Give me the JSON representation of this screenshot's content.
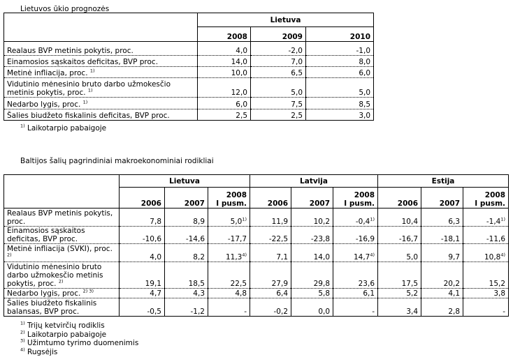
{
  "table1": {
    "title": "Lietuvos ūkio prognozės",
    "group": "Lietuva",
    "years": [
      "2008",
      "2009",
      "2010"
    ],
    "rows": [
      {
        "label": "Realaus BVP metinis pokytis, proc.",
        "sup": "",
        "values": [
          "4,0",
          "-2,0",
          "-1,0"
        ]
      },
      {
        "label": "Einamosios sąskaitos deficitas, BVP proc.",
        "sup": "",
        "values": [
          "14,0",
          "7,0",
          "8,0"
        ]
      },
      {
        "label": "Metinė infliacija, proc.",
        "sup": "1)",
        "values": [
          "10,0",
          "6,5",
          "6,0"
        ]
      },
      {
        "label": "Vidutinio mėnesinio bruto darbo užmokesčio metinis pokytis, proc.",
        "sup": "1)",
        "values": [
          "12,0",
          "5,0",
          "5,0"
        ]
      },
      {
        "label": "Nedarbo lygis, proc.",
        "sup": "1)",
        "values": [
          "6,0",
          "7,5",
          "8,5"
        ]
      },
      {
        "label": "Šalies biudžeto fiskalinis deficitas, BVP proc.",
        "sup": "",
        "values": [
          "2,5",
          "2,5",
          "3,0"
        ]
      }
    ],
    "footnote": {
      "sup": "1)",
      "text": "Laikotarpio pabaigoje"
    }
  },
  "table2": {
    "title": "Baltijos šalių pagrindiniai makroekonominiai rodikliai",
    "groups": [
      "Lietuva",
      "Latvija",
      "Estija"
    ],
    "years": [
      "2006",
      "2007",
      "2008",
      "2006",
      "2007",
      "2008",
      "2006",
      "2007",
      "2008"
    ],
    "subyears": [
      "",
      "",
      "I pusm.",
      "",
      "",
      "I pusm.",
      "",
      "",
      "I pusm."
    ],
    "rows": [
      {
        "label": "Realaus BVP metinis pokytis, proc.",
        "sup": "",
        "values": [
          "7,8",
          "8,9",
          "5,0",
          "11,9",
          "10,2",
          "-0,4",
          "10,4",
          "6,3",
          "-1,4"
        ],
        "sups": [
          "",
          "",
          "1)",
          "",
          "",
          "1)",
          "",
          "",
          "1)"
        ]
      },
      {
        "label": "Einamosios sąskaitos deficitas, BVP proc.",
        "sup": "",
        "values": [
          "-10,6",
          "-14,6",
          "-17,7",
          "-22,5",
          "-23,8",
          "-16,9",
          "-16,7",
          "-18,1",
          "-11,6"
        ],
        "sups": [
          "",
          "",
          "",
          "",
          "",
          "",
          "",
          "",
          ""
        ]
      },
      {
        "label": "Metinė infliacija (SVKI), proc.",
        "sup": "2)",
        "values": [
          "4,0",
          "8,2",
          "11,3",
          "7,1",
          "14,0",
          "14,7",
          "5,0",
          "9,7",
          "10,8"
        ],
        "sups": [
          "",
          "",
          "4)",
          "",
          "",
          "4)",
          "",
          "",
          "4)"
        ]
      },
      {
        "label": "Vidutinio mėnesinio bruto darbo užmokesčio metinis pokytis, proc.",
        "sup": "2)",
        "values": [
          "19,1",
          "18,5",
          "22,5",
          "27,9",
          "29,8",
          "23,6",
          "17,5",
          "20,2",
          "15,2"
        ],
        "sups": [
          "",
          "",
          "",
          "",
          "",
          "",
          "",
          "",
          ""
        ]
      },
      {
        "label": "Nedarbo lygis, proc.",
        "sup": "2) 3)",
        "values": [
          "4,7",
          "4,3",
          "4,8",
          "6,4",
          "5,8",
          "6,1",
          "5,2",
          "4,1",
          "3,8"
        ],
        "sups": [
          "",
          "",
          "",
          "",
          "",
          "",
          "",
          "",
          ""
        ]
      },
      {
        "label": "Šalies biudžeto fiskalinis balansas, BVP proc.",
        "sup": "",
        "values": [
          "-0,5",
          "-1,2",
          "-",
          "-0,2",
          "0,0",
          "-",
          "3,4",
          "2,8",
          "-"
        ],
        "sups": [
          "",
          "",
          "",
          "",
          "",
          "",
          "",
          "",
          ""
        ]
      }
    ],
    "footnotes": [
      {
        "sup": "1)",
        "text": "Trijų ketvirčių rodiklis"
      },
      {
        "sup": "2)",
        "text": "Laikotarpio pabaigoje"
      },
      {
        "sup": "3)",
        "text": "Užimtumo tyrimo duomenimis"
      },
      {
        "sup": "4)",
        "text": "Rugsėjis"
      }
    ]
  }
}
